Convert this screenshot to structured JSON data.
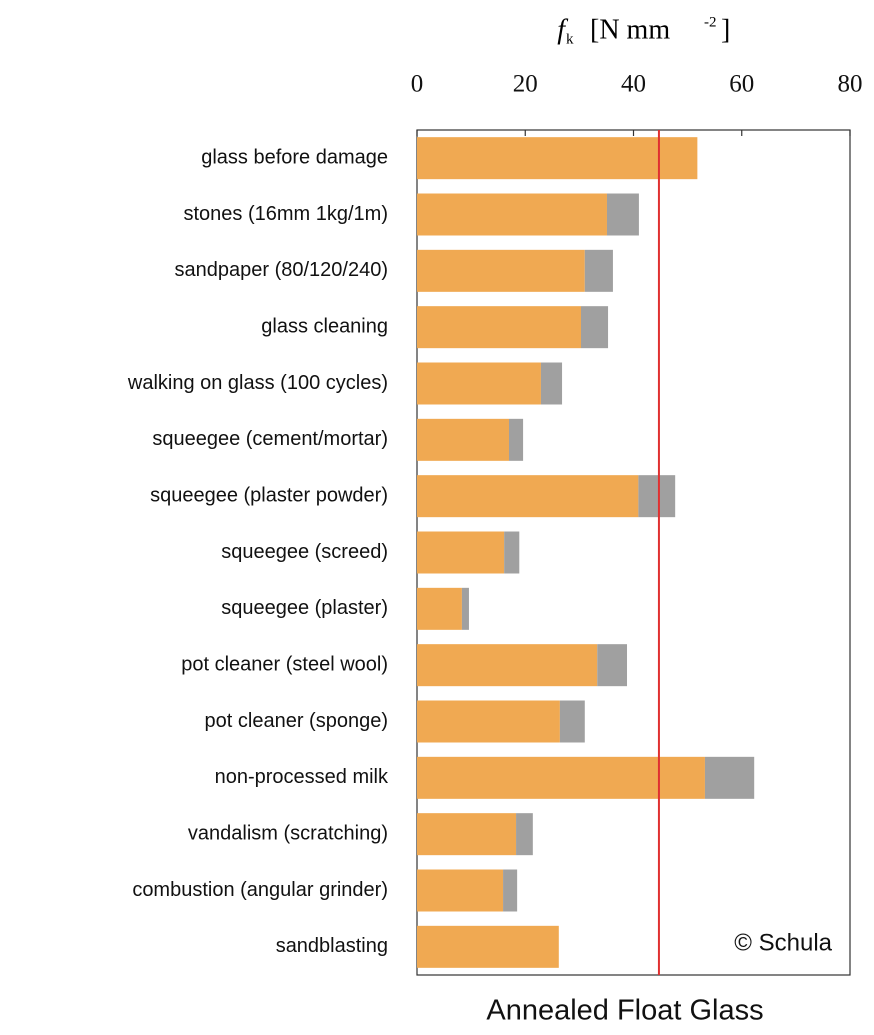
{
  "chart_data": {
    "type": "bar",
    "orientation": "horizontal",
    "stacked": true,
    "xlabel": {
      "symbol": "f",
      "subscript": "k",
      "unit": "[N mm",
      "exponent": "-2",
      "close": "]"
    },
    "caption": "Annealed Float Glass",
    "annotation": "© Schula",
    "categories": [
      "glass before damage",
      "stones (16mm 1kg/1m)",
      "sandpaper (80/120/240)",
      "glass cleaning",
      "walking on glass (100 cycles)",
      "squeegee (cement/mortar)",
      "squeegee (plaster powder)",
      "squeegee (screed)",
      "squeegee (plaster)",
      "pot cleaner (steel wool)",
      "pot cleaner (sponge)",
      "non-processed milk",
      "vandalism (scratching)",
      "combustion (angular grinder)",
      "sandblasting"
    ],
    "series": [
      {
        "color": "#f0a952",
        "values": [
          51.8,
          35.1,
          31.0,
          30.3,
          22.9,
          17.0,
          40.9,
          16.1,
          8.3,
          33.3,
          26.4,
          53.2,
          18.3,
          15.9,
          26.2
        ]
      },
      {
        "color": "#a0a0a0",
        "values": [
          null,
          5.9,
          5.2,
          5.0,
          3.9,
          2.6,
          6.8,
          2.8,
          1.3,
          5.5,
          4.6,
          9.1,
          3.1,
          2.6,
          null
        ]
      }
    ],
    "reference_line": {
      "value": 44.7,
      "color": "#e03030"
    },
    "xlim": [
      0,
      80
    ],
    "xticks": [
      0,
      20,
      40,
      60,
      80
    ]
  }
}
